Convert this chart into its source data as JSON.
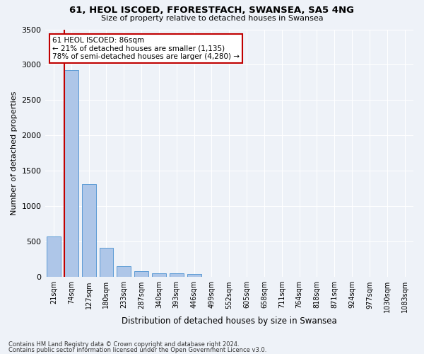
{
  "title_line1": "61, HEOL ISCOED, FFORESTFACH, SWANSEA, SA5 4NG",
  "title_line2": "Size of property relative to detached houses in Swansea",
  "xlabel": "Distribution of detached houses by size in Swansea",
  "ylabel": "Number of detached properties",
  "categories": [
    "21sqm",
    "74sqm",
    "127sqm",
    "180sqm",
    "233sqm",
    "287sqm",
    "340sqm",
    "393sqm",
    "446sqm",
    "499sqm",
    "552sqm",
    "605sqm",
    "658sqm",
    "711sqm",
    "764sqm",
    "818sqm",
    "871sqm",
    "924sqm",
    "977sqm",
    "1030sqm",
    "1083sqm"
  ],
  "values": [
    570,
    2920,
    1310,
    410,
    155,
    80,
    55,
    50,
    45,
    0,
    0,
    0,
    0,
    0,
    0,
    0,
    0,
    0,
    0,
    0,
    0
  ],
  "bar_color": "#aec6e8",
  "bar_edge_color": "#5b9bd5",
  "highlighted_bar_index": 1,
  "highlight_line_color": "#c00000",
  "ylim": [
    0,
    3500
  ],
  "yticks": [
    0,
    500,
    1000,
    1500,
    2000,
    2500,
    3000,
    3500
  ],
  "annotation_title": "61 HEOL ISCOED: 86sqm",
  "annotation_line2": "← 21% of detached houses are smaller (1,135)",
  "annotation_line3": "78% of semi-detached houses are larger (4,280) →",
  "annotation_box_color": "#ffffff",
  "annotation_border_color": "#c00000",
  "background_color": "#eef2f8",
  "footer_line1": "Contains HM Land Registry data © Crown copyright and database right 2024.",
  "footer_line2": "Contains public sector information licensed under the Open Government Licence v3.0."
}
